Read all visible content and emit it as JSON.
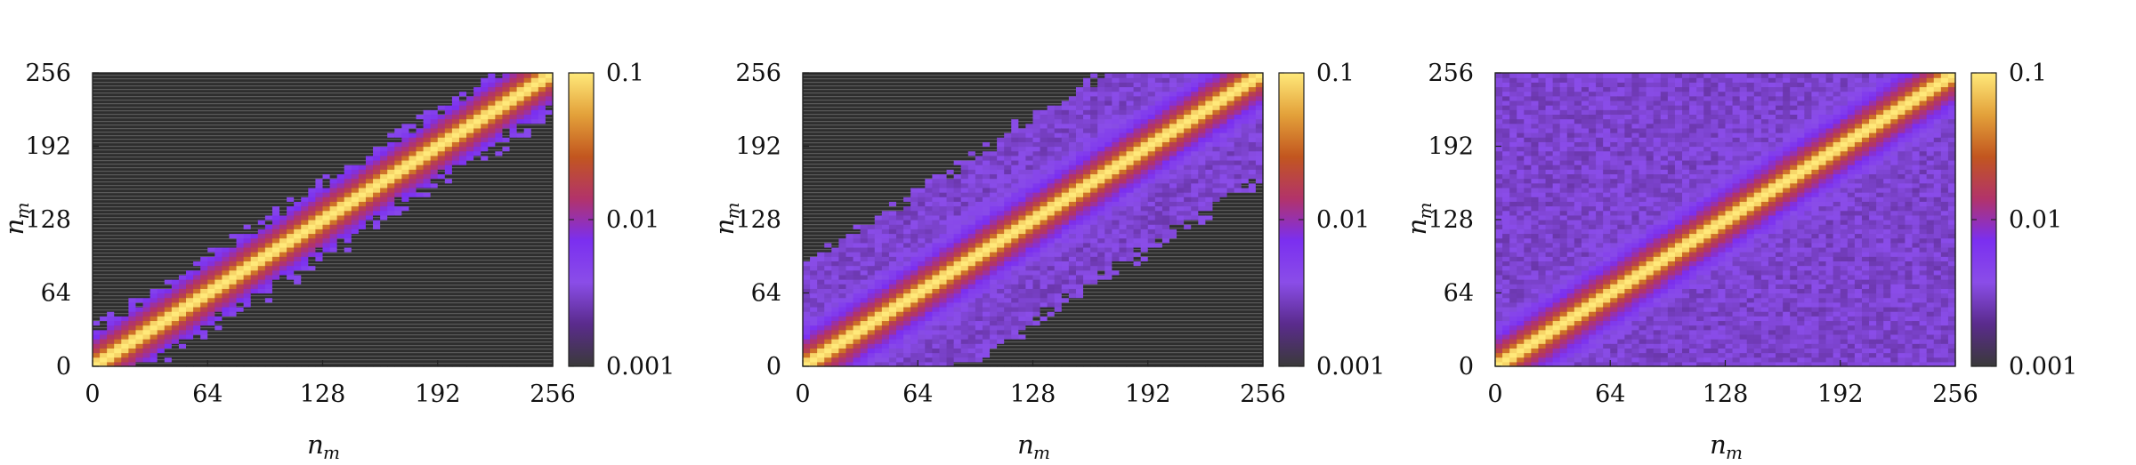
{
  "chart_data": [
    {
      "type": "heatmap",
      "xlabel": "n",
      "xlabel_sub": "m",
      "ylabel": "n",
      "ylabel_sub": "m",
      "xlim": [
        0,
        256
      ],
      "ylim": [
        0,
        256
      ],
      "x_ticks": [
        "0",
        "64",
        "128",
        "192",
        "256"
      ],
      "y_ticks": [
        "0",
        "64",
        "128",
        "192",
        "256"
      ],
      "colorbar": {
        "scale": "log",
        "range": [
          0.001,
          0.1
        ],
        "ticks": [
          "0.1",
          "0.01",
          "0.001"
        ]
      },
      "colormap": [
        "#3a3a3a",
        "#5a2b8c",
        "#8a4de8",
        "#7b2ff0",
        "#b2336a",
        "#c2561f",
        "#e3a13a",
        "#ffe97a"
      ],
      "diagonal_peak": 0.1,
      "band_halfwidth": 32,
      "floor_value": 0.003,
      "background_below_range": true
    },
    {
      "type": "heatmap",
      "xlabel": "n",
      "xlabel_sub": "m",
      "ylabel": "n",
      "ylabel_sub": "m",
      "xlim": [
        0,
        256
      ],
      "ylim": [
        0,
        256
      ],
      "x_ticks": [
        "0",
        "64",
        "128",
        "192",
        "256"
      ],
      "y_ticks": [
        "0",
        "64",
        "128",
        "192",
        "256"
      ],
      "colorbar": {
        "scale": "log",
        "range": [
          0.001,
          0.1
        ],
        "ticks": [
          "0.1",
          "0.01",
          "0.001"
        ]
      },
      "colormap": [
        "#3a3a3a",
        "#5a2b8c",
        "#8a4de8",
        "#7b2ff0",
        "#b2336a",
        "#c2561f",
        "#e3a13a",
        "#ffe97a"
      ],
      "diagonal_peak": 0.1,
      "band_halfwidth": 90,
      "floor_value": 0.003,
      "background_below_range": true
    },
    {
      "type": "heatmap",
      "xlabel": "n",
      "xlabel_sub": "m",
      "ylabel": "n",
      "ylabel_sub": "m",
      "xlim": [
        0,
        256
      ],
      "ylim": [
        0,
        256
      ],
      "x_ticks": [
        "0",
        "64",
        "128",
        "192",
        "256"
      ],
      "y_ticks": [
        "0",
        "64",
        "128",
        "192",
        "256"
      ],
      "colorbar": {
        "scale": "log",
        "range": [
          0.001,
          0.1
        ],
        "ticks": [
          "0.1",
          "0.01",
          "0.001"
        ]
      },
      "colormap": [
        "#3a3a3a",
        "#5a2b8c",
        "#8a4de8",
        "#7b2ff0",
        "#b2336a",
        "#c2561f",
        "#e3a13a",
        "#ffe97a"
      ],
      "diagonal_peak": 0.1,
      "band_halfwidth": 400,
      "floor_value": 0.003,
      "background_below_range": false
    }
  ]
}
